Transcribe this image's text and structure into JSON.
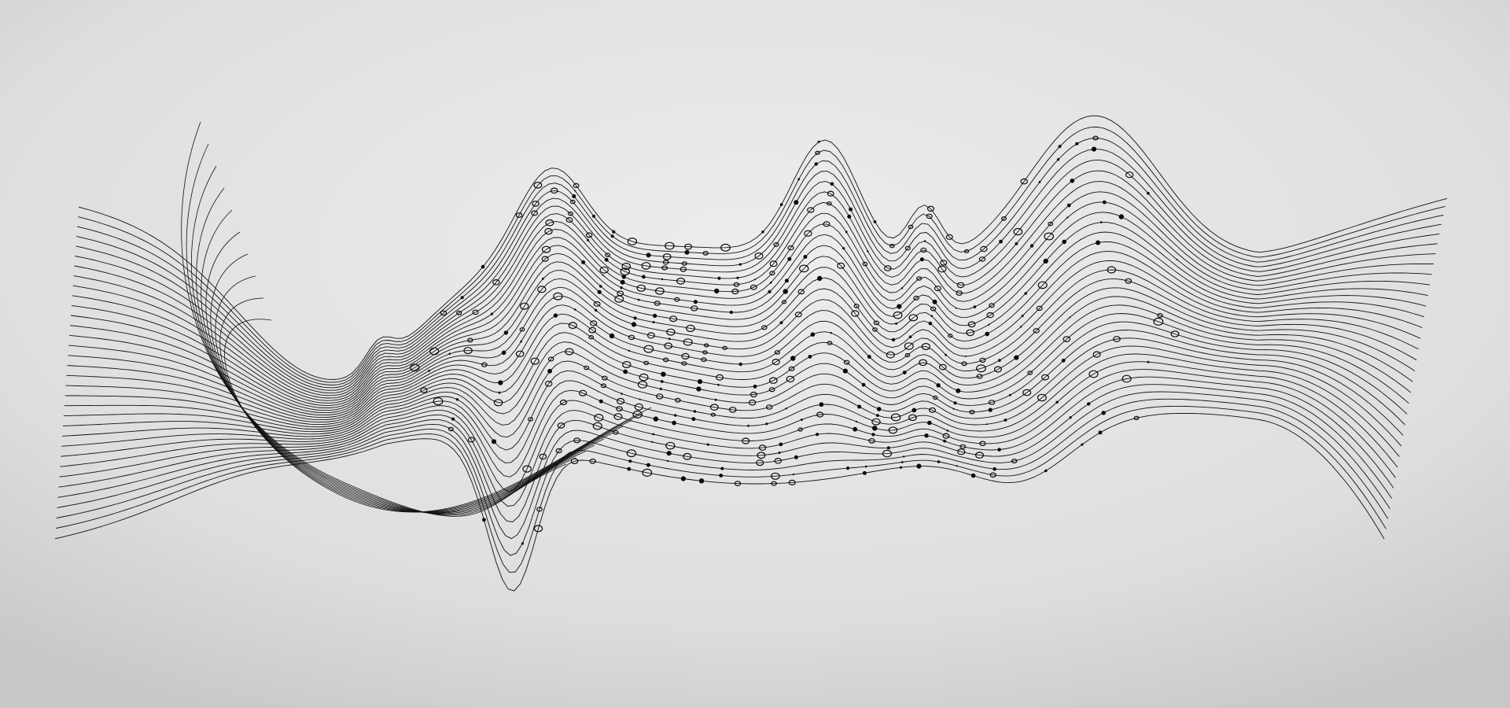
{
  "scene": {
    "description_colors": {
      "background_center": "#ececec",
      "background_edge": "#c9c9c9",
      "line": "#111111",
      "node": "#0a0a0a"
    },
    "icon": "abstract-wave-lines-art"
  }
}
